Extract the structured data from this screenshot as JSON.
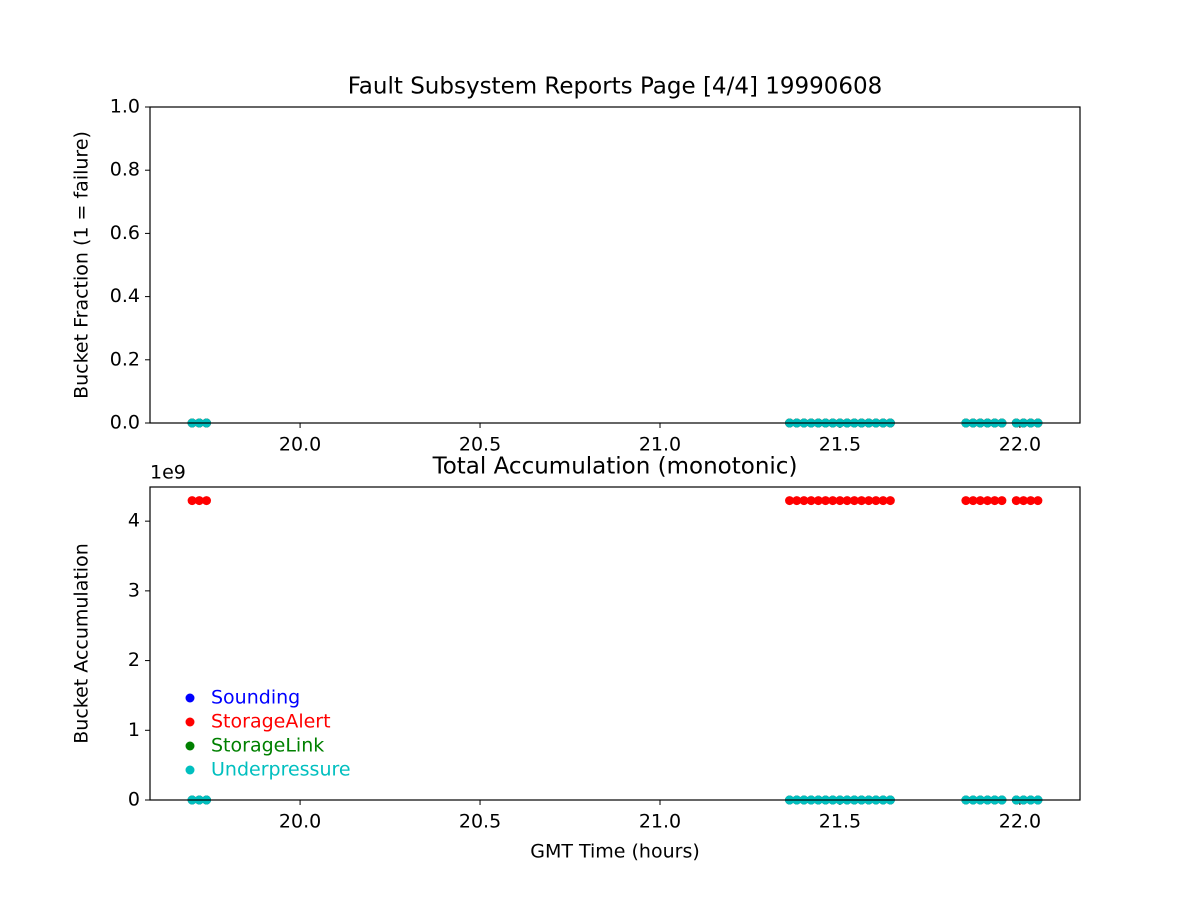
{
  "chart_data": [
    {
      "type": "scatter",
      "title": "Fault Subsystem Reports Page [4/4] 19990608",
      "y_label": "Bucket Fraction (1 = failure)",
      "x": [
        19.7,
        19.72,
        19.74,
        21.36,
        21.38,
        21.4,
        21.42,
        21.44,
        21.46,
        21.48,
        21.5,
        21.52,
        21.54,
        21.56,
        21.58,
        21.6,
        21.62,
        21.64,
        21.85,
        21.87,
        21.89,
        21.91,
        21.93,
        21.95,
        21.99,
        22.01,
        22.03,
        22.05
      ],
      "series": [
        {
          "color": "#0000ff",
          "values": [
            0,
            0,
            0,
            0,
            0,
            0,
            0,
            0,
            0,
            0,
            0,
            0,
            0,
            0,
            0,
            0,
            0,
            0,
            0,
            0,
            0,
            0,
            0,
            0,
            0,
            0,
            0,
            0
          ]
        },
        {
          "color": "#ff0000",
          "values": [
            0,
            0,
            0,
            0,
            0,
            0,
            0,
            0,
            0,
            0,
            0,
            0,
            0,
            0,
            0,
            0,
            0,
            0,
            0,
            0,
            0,
            0,
            0,
            0,
            0,
            0,
            0,
            0
          ]
        },
        {
          "color": "#008000",
          "values": [
            0,
            0,
            0,
            0,
            0,
            0,
            0,
            0,
            0,
            0,
            0,
            0,
            0,
            0,
            0,
            0,
            0,
            0,
            0,
            0,
            0,
            0,
            0,
            0,
            0,
            0,
            0,
            0
          ]
        },
        {
          "color": "#00bfbf",
          "values": [
            0,
            0,
            0,
            0,
            0,
            0,
            0,
            0,
            0,
            0,
            0,
            0,
            0,
            0,
            0,
            0,
            0,
            0,
            0,
            0,
            0,
            0,
            0,
            0,
            0,
            0,
            0,
            0
          ]
        }
      ],
      "xlim": [
        19.583,
        22.167
      ],
      "xticks": [
        {
          "value": 20,
          "label": "20.0"
        },
        20.5,
        {
          "value": 21,
          "label": "21.0"
        },
        21.5,
        {
          "value": 22,
          "label": "22.0"
        }
      ],
      "ylim": [
        0,
        1
      ],
      "yticks": [
        {
          "value": 0,
          "label": "0.0"
        },
        0.2,
        0.4,
        0.6,
        0.8,
        {
          "value": 1,
          "label": "1.0"
        }
      ]
    },
    {
      "type": "scatter",
      "title": "Total Accumulation (monotonic)",
      "x_label": "GMT Time (hours)",
      "y_label": "Bucket Accumulation",
      "y_offset_label": "1e9",
      "x": [
        19.7,
        19.72,
        19.74,
        21.36,
        21.38,
        21.4,
        21.42,
        21.44,
        21.46,
        21.48,
        21.5,
        21.52,
        21.54,
        21.56,
        21.58,
        21.6,
        21.62,
        21.64,
        21.85,
        21.87,
        21.89,
        21.91,
        21.93,
        21.95,
        21.99,
        22.01,
        22.03,
        22.05
      ],
      "series": [
        {
          "name": "Sounding",
          "color": "#0000ff",
          "values": [
            0,
            0,
            0,
            0,
            0,
            0,
            0,
            0,
            0,
            0,
            0,
            0,
            0,
            0,
            0,
            0,
            0,
            0,
            0,
            0,
            0,
            0,
            0,
            0,
            0,
            0,
            0,
            0
          ]
        },
        {
          "name": "StorageAlert",
          "color": "#ff0000",
          "values": [
            4294967295,
            4294967295,
            4294967295,
            4294967295,
            4294967295,
            4294967295,
            4294967295,
            4294967295,
            4294967295,
            4294967295,
            4294967295,
            4294967295,
            4294967295,
            4294967295,
            4294967295,
            4294967295,
            4294967295,
            4294967295,
            4294967295,
            4294967295,
            4294967295,
            4294967295,
            4294967295,
            4294967295,
            4294967295,
            4294967295,
            4294967295,
            4294967295
          ]
        },
        {
          "name": "StorageLink",
          "color": "#008000",
          "values": [
            0,
            0,
            0,
            0,
            0,
            0,
            0,
            0,
            0,
            0,
            0,
            0,
            0,
            0,
            0,
            0,
            0,
            0,
            0,
            0,
            0,
            0,
            0,
            0,
            0,
            0,
            0,
            0
          ]
        },
        {
          "name": "Underpressure",
          "color": "#00bfbf",
          "values": [
            0,
            0,
            0,
            0,
            0,
            0,
            0,
            0,
            0,
            0,
            0,
            0,
            0,
            0,
            0,
            0,
            0,
            0,
            0,
            0,
            0,
            0,
            0,
            0,
            0,
            0,
            0,
            0
          ]
        }
      ],
      "xlim": [
        19.583,
        22.167
      ],
      "xticks": [
        {
          "value": 20,
          "label": "20.0"
        },
        20.5,
        {
          "value": 21,
          "label": "21.0"
        },
        21.5,
        {
          "value": 22,
          "label": "22.0"
        }
      ],
      "ylim": [
        0,
        4490000000
      ],
      "yticks": [
        {
          "value": 0,
          "label": "0"
        },
        {
          "value": 1000000000,
          "label": "1"
        },
        {
          "value": 2000000000,
          "label": "2"
        },
        {
          "value": 3000000000,
          "label": "3"
        },
        {
          "value": 4000000000,
          "label": "4"
        }
      ],
      "legend": "lower left"
    }
  ]
}
